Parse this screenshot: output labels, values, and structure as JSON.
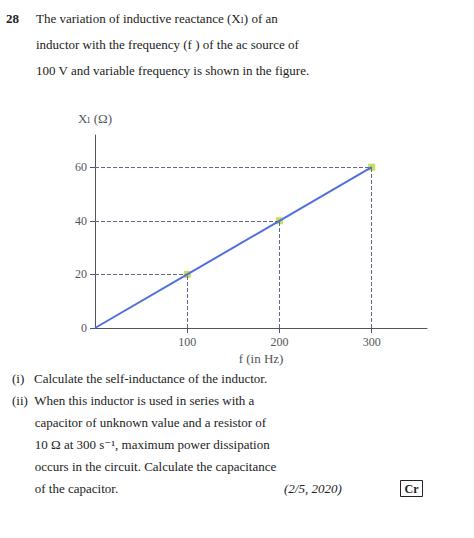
{
  "chart_data": {
    "type": "line",
    "title": "28",
    "subtitle": "The variation of inductive reactance (Xₗ) of an\ninductor with the frequency (f ) of the ac source of\n100 V and variable frequency is shown in the figure.",
    "xlabel": "f (in Hz)",
    "ylabel": "Xₗ (Ω)",
    "series": [
      {
        "type": "line",
        "x": [
          0,
          100,
          200,
          300
        ],
        "values": [
          0,
          20,
          40,
          60
        ]
      },
      {
        "type": "scatter",
        "x": [
          100,
          200,
          300
        ],
        "values": [
          20,
          40,
          60
        ],
        "marker": "square",
        "line_style": "dashed"
      }
    ],
    "xlim": [
      0,
      360
    ],
    "xticks": [
      100,
      200,
      300
    ],
    "ylim": [
      0,
      72
    ],
    "yticks": [
      0,
      20,
      40,
      60
    ],
    "grid": false,
    "annotations": [
      [
        "(i)   Calculate the self-inductance of the inductor."
      ],
      [
        "(ii)  When this inductor is used in series with a"
      ],
      [
        "       capacitor of unknown value and a resistor of"
      ],
      [
        "       10 Ω at 300 s⁻¹, maximum power dissipation"
      ],
      [
        "       occurs in the circuit. Calculate the capacitance"
      ],
      [
        "       of the capacitor.",
        "(2/5, 2020)",
        "Cr"
      ]
    ]
  }
}
